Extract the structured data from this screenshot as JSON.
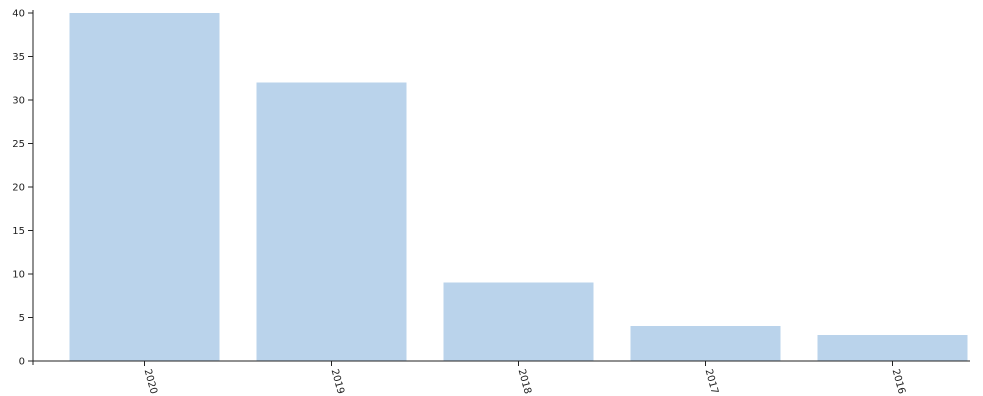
{
  "chart_data": {
    "type": "bar",
    "categories": [
      "2020",
      "2019",
      "2018",
      "2017",
      "2016"
    ],
    "values": [
      40,
      32,
      9,
      4,
      3
    ],
    "ylim": [
      0,
      40
    ],
    "yticks": [
      0,
      5,
      10,
      15,
      20,
      25,
      30,
      35,
      40
    ],
    "bar_color": "#bad3eb",
    "grid": false,
    "legend": "none"
  }
}
